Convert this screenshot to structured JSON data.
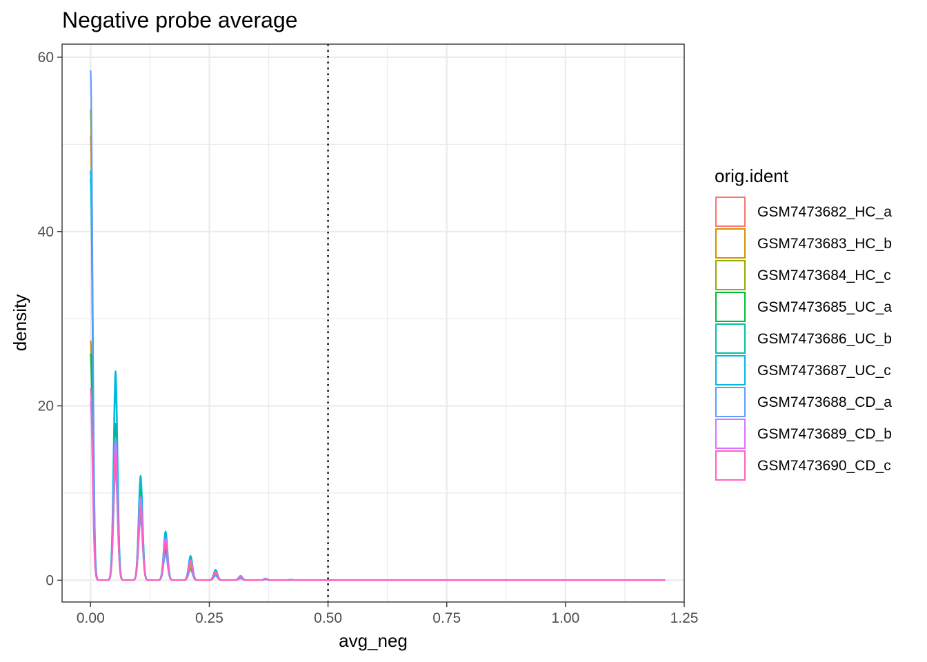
{
  "chart_data": {
    "type": "line",
    "subtype": "density",
    "title": "Negative probe average",
    "xlabel": "avg_neg",
    "ylabel": "density",
    "xlim": [
      -0.06,
      1.25
    ],
    "ylim": [
      -2.5,
      61.5
    ],
    "x_ticks": [
      0.0,
      0.25,
      0.5,
      0.75,
      1.0,
      1.25
    ],
    "x_tick_labels": [
      "0.00",
      "0.25",
      "0.50",
      "0.75",
      "1.00",
      "1.25"
    ],
    "y_ticks": [
      0,
      20,
      40,
      60
    ],
    "y_tick_labels": [
      "0",
      "20",
      "40",
      "60"
    ],
    "grid": true,
    "x_range_of_curves": [
      0.0,
      1.21
    ],
    "peak_positions": [
      0.0,
      0.0526,
      0.1053,
      0.1579,
      0.2105,
      0.2632,
      0.3158,
      0.3684,
      0.4211
    ],
    "peak_width_sd": 0.0042,
    "vline": {
      "x": 0.5,
      "style": "dotted",
      "color": "#000000"
    },
    "legend": {
      "title": "orig.ident",
      "position": "right"
    },
    "series": [
      {
        "name": "GSM7473682_HC_a",
        "color": "#F8766D",
        "peaks": [
          51,
          15.5,
          9.5,
          4.2,
          1.8,
          0.8,
          0.35,
          0.15,
          0.06
        ]
      },
      {
        "name": "GSM7473683_HC_b",
        "color": "#D39200",
        "peaks": [
          27.5,
          14,
          8.5,
          3.8,
          1.6,
          0.7,
          0.3,
          0.12,
          0.05
        ]
      },
      {
        "name": "GSM7473684_HC_c",
        "color": "#93AA00",
        "peaks": [
          54,
          13,
          7.5,
          3.2,
          1.3,
          0.55,
          0.25,
          0.1,
          0.04
        ]
      },
      {
        "name": "GSM7473685_UC_a",
        "color": "#00BA38",
        "peaks": [
          26,
          18,
          10.5,
          3.5,
          1.2,
          0.5,
          0.2,
          0.08,
          0.03
        ]
      },
      {
        "name": "GSM7473686_UC_b",
        "color": "#00C19F",
        "peaks": [
          46,
          22,
          11.5,
          5.2,
          2.5,
          1.0,
          0.45,
          0.18,
          0.07
        ]
      },
      {
        "name": "GSM7473687_UC_c",
        "color": "#00B9E3",
        "peaks": [
          47,
          24,
          12,
          5.6,
          2.8,
          1.2,
          0.5,
          0.2,
          0.08
        ]
      },
      {
        "name": "GSM7473688_CD_a",
        "color": "#619CFF",
        "peaks": [
          58.5,
          12.5,
          7,
          3.0,
          1.2,
          0.5,
          0.2,
          0.08,
          0.03
        ]
      },
      {
        "name": "GSM7473689_CD_b",
        "color": "#DB72FB",
        "peaks": [
          20.5,
          16,
          9.5,
          4.8,
          2.3,
          1.0,
          0.45,
          0.18,
          0.07
        ]
      },
      {
        "name": "GSM7473690_CD_c",
        "color": "#FF61C3",
        "peaks": [
          22,
          14.5,
          8.2,
          4.3,
          2.1,
          0.9,
          0.4,
          0.15,
          0.06
        ]
      }
    ]
  }
}
